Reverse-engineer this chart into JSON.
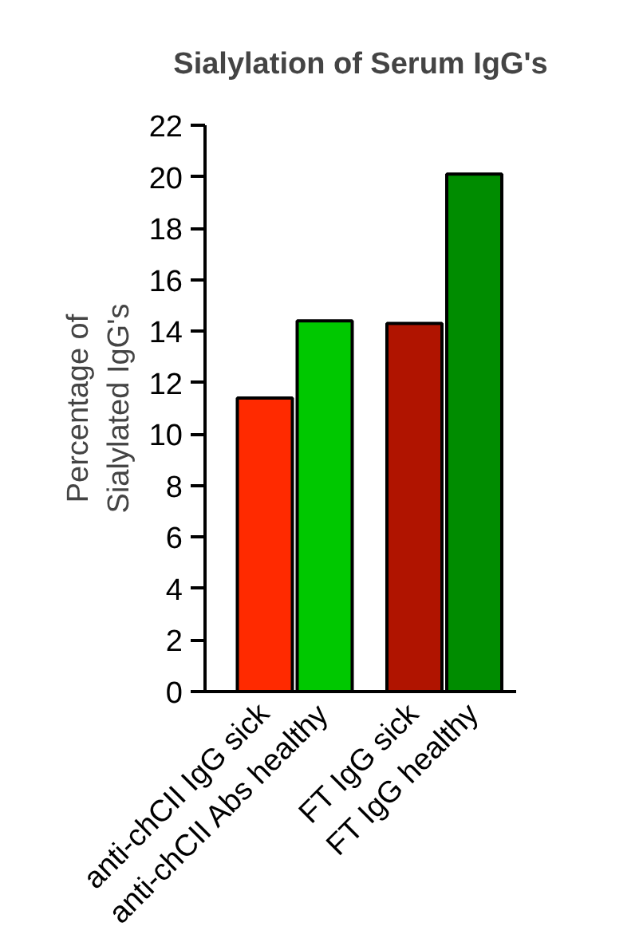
{
  "chart_data": {
    "type": "bar",
    "title": "Sialylation of Serum IgG's",
    "ylabel": "Percentage of\nSialylated IgG's",
    "categories": [
      "anti-chCII IgG sick",
      "anti-chCII Abs healthy",
      "FT IgG sick",
      "FT IgG healthy"
    ],
    "values": [
      11.4,
      14.4,
      14.3,
      20.1
    ],
    "colors": [
      "#ff2a00",
      "#00c800",
      "#b01400",
      "#008c00"
    ],
    "ylim": [
      0,
      22
    ],
    "yticks": [
      0,
      2,
      4,
      6,
      8,
      10,
      12,
      14,
      16,
      18,
      20,
      22
    ],
    "grid": false
  }
}
